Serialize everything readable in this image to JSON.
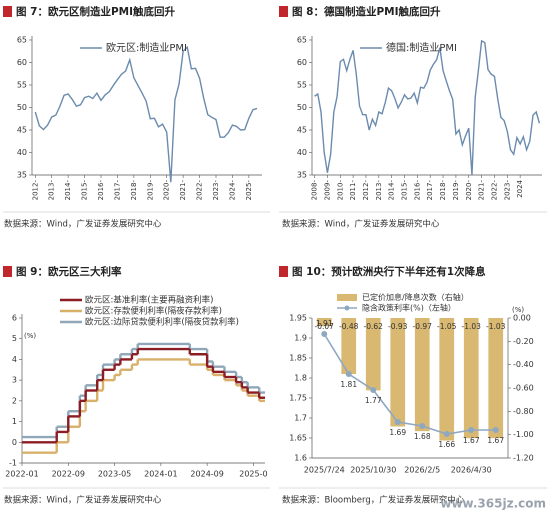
{
  "chart_data": [
    {
      "type": "line",
      "title": "图 7：欧元区制造业PMI触底回升",
      "source": "数据来源：Wind，广发证券发展研究中心",
      "legend": "top",
      "x": [
        2012.0,
        2012.25,
        2012.5,
        2012.75,
        2013.0,
        2013.25,
        2013.5,
        2013.75,
        2014.0,
        2014.25,
        2014.5,
        2014.75,
        2015.0,
        2015.25,
        2015.5,
        2015.75,
        2016.0,
        2016.25,
        2016.5,
        2016.75,
        2017.0,
        2017.25,
        2017.5,
        2017.75,
        2018.0,
        2018.25,
        2018.5,
        2018.75,
        2019.0,
        2019.25,
        2019.5,
        2019.75,
        2020.0,
        2020.25,
        2020.5,
        2020.75,
        2021.0,
        2021.25,
        2021.5,
        2021.75,
        2022.0,
        2022.25,
        2022.5,
        2022.75,
        2023.0,
        2023.25,
        2023.5,
        2023.75,
        2024.0,
        2024.25,
        2024.5,
        2024.75,
        2025.0,
        2025.25,
        2025.5
      ],
      "series": [
        {
          "name": "欧元区:制造业PMI",
          "color": "#6b8bae",
          "values": [
            49.0,
            45.9,
            45.1,
            46.1,
            47.9,
            48.3,
            50.3,
            52.7,
            53.0,
            51.8,
            50.3,
            50.6,
            52.2,
            52.5,
            52.0,
            53.2,
            51.6,
            52.8,
            53.5,
            54.9,
            56.2,
            57.4,
            58.1,
            60.6,
            56.6,
            54.9,
            53.2,
            51.4,
            47.5,
            47.6,
            45.7,
            46.3,
            44.5,
            33.4,
            51.7,
            55.2,
            62.5,
            63.4,
            58.6,
            58.7,
            56.5,
            52.1,
            48.4,
            47.8,
            47.3,
            43.4,
            43.4,
            44.4,
            46.1,
            45.8,
            45.0,
            45.1,
            47.6,
            49.5,
            49.8
          ]
        }
      ],
      "xlim": [
        2011.8,
        2025.8
      ],
      "xticks": [
        {
          "value": 2012,
          "label": "2012-"
        },
        {
          "value": 2013,
          "label": "2013-"
        },
        {
          "value": 2014,
          "label": "2014-"
        },
        {
          "value": 2015,
          "label": "2015-"
        },
        {
          "value": 2016,
          "label": "2016-"
        },
        {
          "value": 2017,
          "label": "2017-"
        },
        {
          "value": 2018,
          "label": "2018-"
        },
        {
          "value": 2019,
          "label": "2019-"
        },
        {
          "value": 2020,
          "label": "2020-"
        },
        {
          "value": 2021,
          "label": "2021-"
        },
        {
          "value": 2022,
          "label": "2022-"
        },
        {
          "value": 2023,
          "label": "2023-"
        },
        {
          "value": 2024,
          "label": "2024-"
        },
        {
          "value": 2025,
          "label": "2025-"
        }
      ],
      "ylim": [
        35,
        65
      ],
      "yticks": [
        35,
        40,
        45,
        50,
        55,
        60,
        65
      ]
    },
    {
      "type": "line",
      "title": "图 8：德国制造业PMI触底回升",
      "source": "数据来源：Wind，广发证券发展研究中心",
      "legend": "top",
      "x": [
        2008.0,
        2008.25,
        2008.5,
        2008.75,
        2009.0,
        2009.25,
        2009.5,
        2009.75,
        2010.0,
        2010.25,
        2010.5,
        2010.75,
        2011.0,
        2011.25,
        2011.5,
        2011.75,
        2012.0,
        2012.25,
        2012.5,
        2012.75,
        2013.0,
        2013.25,
        2013.5,
        2013.75,
        2014.0,
        2014.25,
        2014.5,
        2014.75,
        2015.0,
        2015.25,
        2015.5,
        2015.75,
        2016.0,
        2016.25,
        2016.5,
        2016.75,
        2017.0,
        2017.25,
        2017.5,
        2017.75,
        2018.0,
        2018.25,
        2018.5,
        2018.75,
        2019.0,
        2019.25,
        2019.5,
        2019.75,
        2020.0,
        2020.25,
        2020.5,
        2020.75,
        2021.0,
        2021.25,
        2021.5,
        2021.75,
        2022.0,
        2022.25,
        2022.5,
        2022.75,
        2023.0,
        2023.25,
        2023.5,
        2023.75,
        2024.0,
        2024.25,
        2024.5,
        2024.75,
        2025.0,
        2025.25,
        2025.5
      ],
      "series": [
        {
          "name": "德国:制造业PMI",
          "color": "#6b8bae",
          "values": [
            52.5,
            53.0,
            49.0,
            40.0,
            35.5,
            39.6,
            49.0,
            52.4,
            60.2,
            60.7,
            58.2,
            60.7,
            62.7,
            57.3,
            50.3,
            48.4,
            48.4,
            45.0,
            47.4,
            46.0,
            49.0,
            48.6,
            51.1,
            54.3,
            53.7,
            52.0,
            49.9,
            51.2,
            52.8,
            51.9,
            52.1,
            53.2,
            51.0,
            54.5,
            54.3,
            55.6,
            58.3,
            59.6,
            60.6,
            63.3,
            58.2,
            55.9,
            53.7,
            51.8,
            44.1,
            45.0,
            41.7,
            43.7,
            45.4,
            35.0,
            52.2,
            58.3,
            64.8,
            64.4,
            58.4,
            57.4,
            56.9,
            52.0,
            47.8,
            47.1,
            44.7,
            40.6,
            39.6,
            43.3,
            41.9,
            43.5,
            40.6,
            42.5,
            48.3,
            49.0,
            46.5
          ]
        }
      ],
      "xlim": [
        2007.8,
        2025.7
      ],
      "xticks": [
        {
          "value": 2008,
          "label": "2008-"
        },
        {
          "value": 2009,
          "label": "2009-"
        },
        {
          "value": 2010,
          "label": "2010-"
        },
        {
          "value": 2011,
          "label": "2011-"
        },
        {
          "value": 2012,
          "label": "2012-"
        },
        {
          "value": 2013,
          "label": "2013-"
        },
        {
          "value": 2014,
          "label": "2014-"
        },
        {
          "value": 2015,
          "label": "2015-"
        },
        {
          "value": 2016,
          "label": "2016-"
        },
        {
          "value": 2017,
          "label": "2017-"
        },
        {
          "value": 2018,
          "label": "2018-"
        },
        {
          "value": 2019,
          "label": "2019-"
        },
        {
          "value": 2020,
          "label": "2020-"
        },
        {
          "value": 2021,
          "label": "2021-"
        },
        {
          "value": 2022,
          "label": "2022-"
        },
        {
          "value": 2023,
          "label": "2023-"
        },
        {
          "value": 2024,
          "label": "2024"
        }
      ],
      "ylim": [
        35,
        65
      ],
      "yticks": [
        35,
        40,
        45,
        50,
        55,
        60,
        65
      ]
    },
    {
      "type": "step",
      "title": "图 9：欧元区三大利率",
      "source": "数据来源：Wind，广发证券发展研究中心",
      "legend": "top-left",
      "y_unit": "(%)",
      "x": [
        "2022-01",
        "2022-07",
        "2022-09",
        "2022-11",
        "2022-12",
        "2023-02",
        "2023-03",
        "2023-05",
        "2023-06",
        "2023-08",
        "2023-09",
        "2024-06",
        "2024-09",
        "2024-10",
        "2024-12",
        "2025-02",
        "2025-03",
        "2025-04",
        "2025-06"
      ],
      "series": [
        {
          "name": "欧元区:基准利率(主要再融资利率)",
          "color": "#8b1c24",
          "values": [
            0,
            0.5,
            1.25,
            2.0,
            2.5,
            3.0,
            3.5,
            3.75,
            4.0,
            4.25,
            4.5,
            4.25,
            3.65,
            3.4,
            3.15,
            2.9,
            2.65,
            2.4,
            2.15
          ]
        },
        {
          "name": "欧元区:存款便利利率(隔夜存款利率)",
          "color": "#d8b06a",
          "values": [
            -0.5,
            0,
            0.75,
            1.5,
            2.0,
            2.5,
            3.0,
            3.25,
            3.5,
            3.75,
            4.0,
            3.75,
            3.5,
            3.25,
            3.0,
            2.75,
            2.5,
            2.25,
            2.0
          ]
        },
        {
          "name": "欧元区:边际贷款便利利率(隔夜贷款利率)",
          "color": "#8fa7b8",
          "values": [
            0.25,
            0.75,
            1.5,
            2.25,
            2.75,
            3.25,
            3.75,
            4.0,
            4.25,
            4.5,
            4.75,
            4.5,
            3.9,
            3.65,
            3.4,
            3.15,
            2.9,
            2.65,
            2.4
          ]
        }
      ],
      "xlim": [
        "2022-01",
        "2025-07"
      ],
      "xticks": [
        "2022-01",
        "2022-09",
        "2023-05",
        "2024-01",
        "2024-09",
        {
          "value": "2025-05",
          "label": "2025-0"
        }
      ],
      "ylim": [
        -1,
        6
      ],
      "yticks": [
        -1,
        0,
        1,
        2,
        3,
        4,
        5,
        6
      ]
    },
    {
      "type": "combo",
      "title": "图 10：预计欧洲央行下半年还有1次降息",
      "source": "数据来源：Bloomberg，广发证券发展研究中心",
      "legend": "top",
      "y2_unit": "(%)",
      "categories": [
        "2025/7/24",
        null,
        "2025/10/30",
        null,
        "2026/2/5",
        null,
        "2026/4/30",
        null
      ],
      "series": [
        {
          "name": "已定价加息/降息次数（右轴）",
          "type": "bar",
          "axis": "y2",
          "color": "#d9b872",
          "values": [
            -0.07,
            -0.48,
            -0.62,
            -0.93,
            -0.97,
            -1.05,
            -1.03,
            -1.03
          ]
        },
        {
          "name": "隐含政策利率(%)（左轴）",
          "type": "line",
          "color": "#8fa8c2",
          "values": [
            1.91,
            1.81,
            1.77,
            1.69,
            1.68,
            1.66,
            1.67,
            1.67
          ]
        }
      ],
      "ylim": [
        1.6,
        1.95
      ],
      "yticks": [
        1.6,
        1.65,
        1.7,
        1.75,
        1.8,
        1.85,
        1.9,
        1.95
      ],
      "y2lim": [
        -1.2,
        0
      ],
      "y2ticks": [
        {
          "value": 0,
          "label": "0.00"
        },
        {
          "value": -0.2,
          "label": "-0.20"
        },
        {
          "value": -0.4,
          "label": "-0.40"
        },
        {
          "value": -0.6,
          "label": "-0.60"
        },
        {
          "value": -0.8,
          "label": "-0.80"
        },
        {
          "value": -1.0,
          "label": "-1.00"
        },
        {
          "value": -1.2,
          "label": "-1.20"
        }
      ]
    }
  ],
  "watermark": "www.365jz.com"
}
